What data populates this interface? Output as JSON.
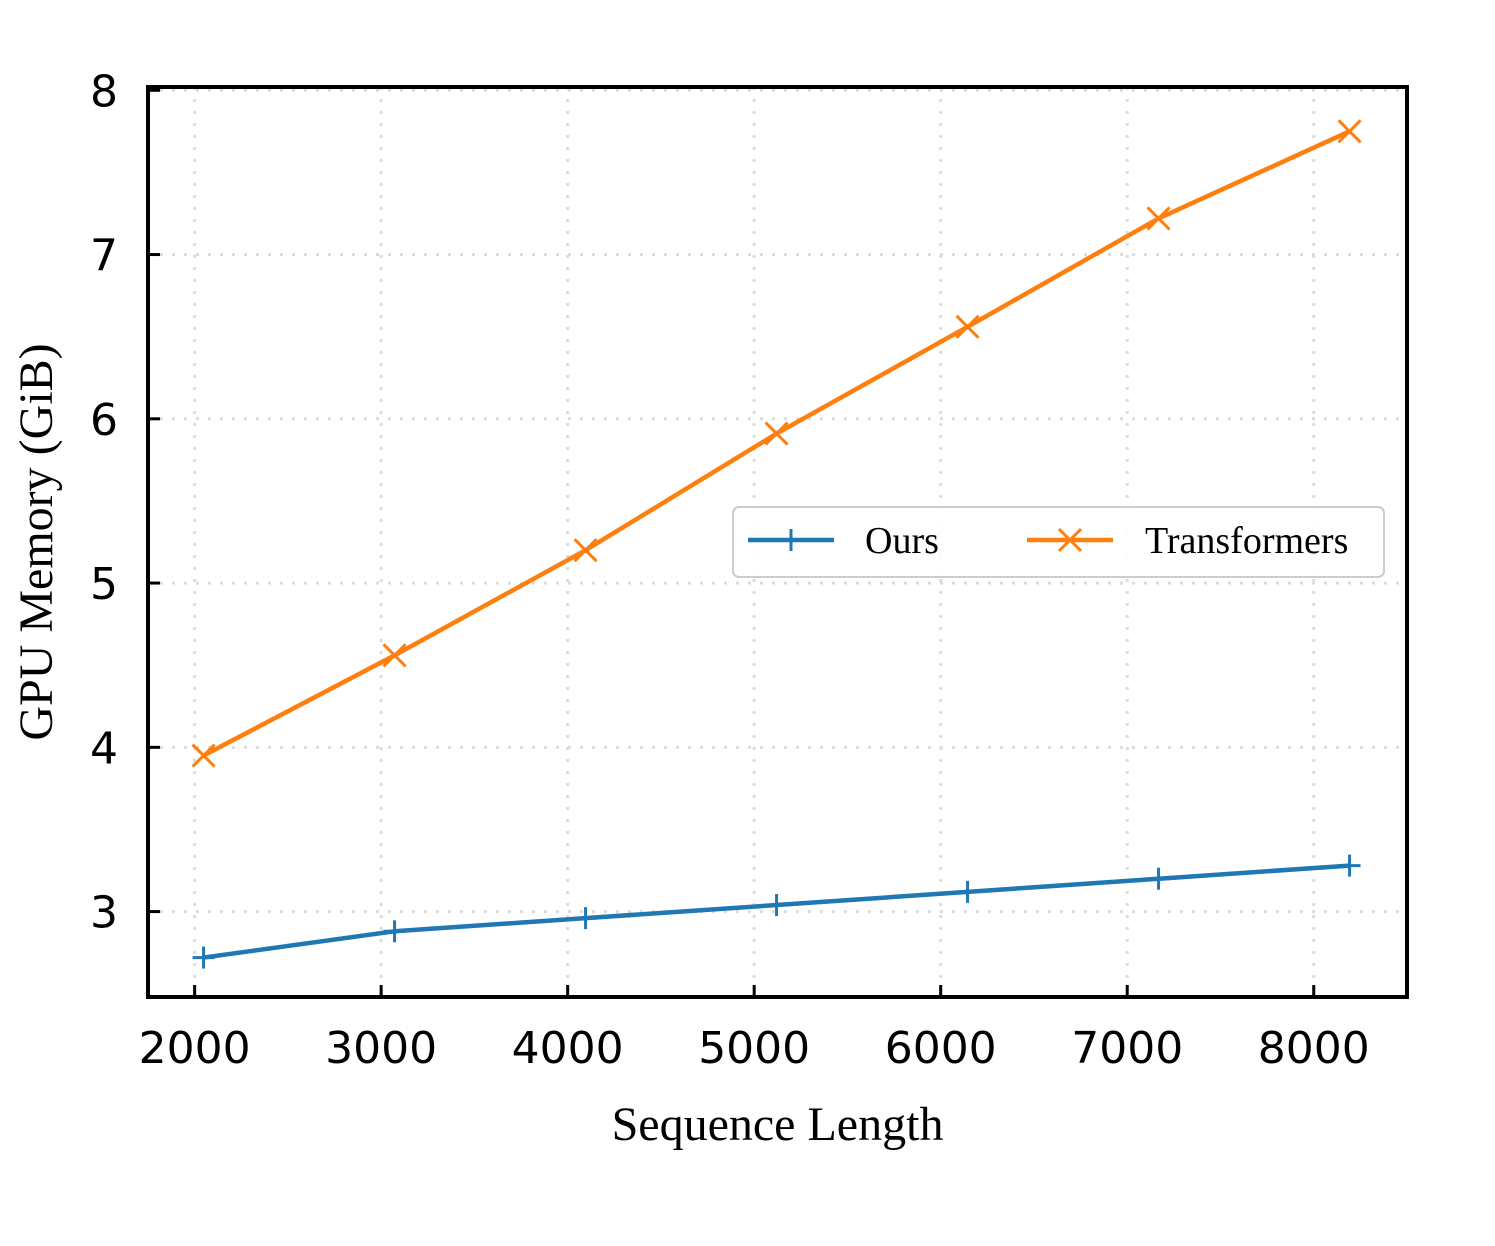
{
  "chart_data": {
    "type": "line",
    "xlabel": "Sequence Length",
    "ylabel": "GPU Memory (GiB)",
    "xlim": [
      1750,
      8500
    ],
    "ylim": [
      2.48,
      8.02
    ],
    "xticks": [
      2000,
      3000,
      4000,
      5000,
      6000,
      7000,
      8000
    ],
    "yticks": [
      3,
      4,
      5,
      6,
      7,
      8
    ],
    "xtick_labels": [
      "2000",
      "3000",
      "4000",
      "5000",
      "6000",
      "7000",
      "8000"
    ],
    "ytick_labels": [
      "3",
      "4",
      "5",
      "6",
      "7",
      "8"
    ],
    "grid": true,
    "legend_position": "center-right",
    "series": [
      {
        "name": "Ours",
        "color": "#1f77b4",
        "marker": "plus",
        "x": [
          2048,
          3072,
          4096,
          5120,
          6144,
          7168,
          8192
        ],
        "y": [
          2.72,
          2.88,
          2.96,
          3.04,
          3.12,
          3.2,
          3.28
        ]
      },
      {
        "name": "Transformers",
        "color": "#ff7f0e",
        "marker": "x",
        "x": [
          2048,
          3072,
          4096,
          5120,
          6144,
          7168,
          8192
        ],
        "y": [
          3.95,
          4.56,
          5.2,
          5.91,
          6.56,
          7.22,
          7.75
        ]
      }
    ]
  }
}
